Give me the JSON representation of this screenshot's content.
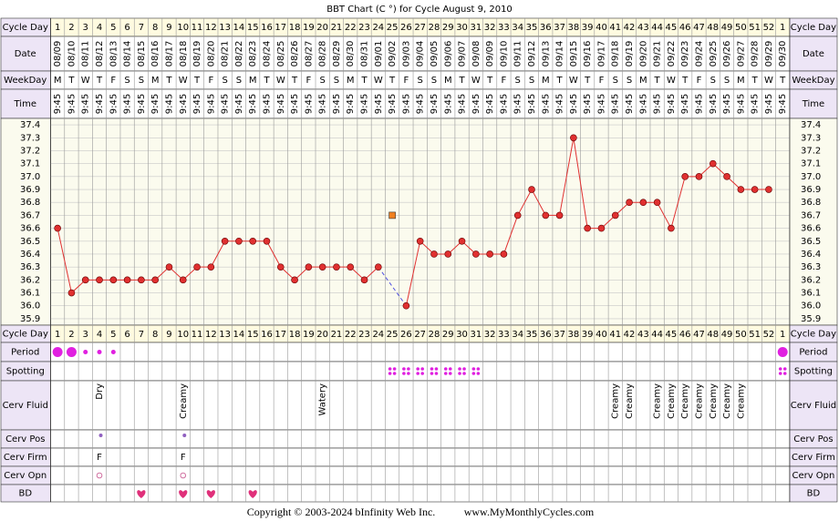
{
  "header": {
    "title": "BBT Chart (C °) for Cycle August 9, 2010",
    "copyright": "Copyright © 2003-2024 bInfinity Web Inc.",
    "site": "www.MyMonthlyCycles.com"
  },
  "labels": {
    "cycle_day": "Cycle Day",
    "date": "Date",
    "weekday": "WeekDay",
    "time": "Time",
    "period": "Period",
    "spotting": "Spotting",
    "cerv_fluid": "Cerv Fluid",
    "cerv_pos": "Cerv Pos",
    "cerv_firm": "Cerv Firm",
    "cerv_opn": "Cerv Opn",
    "bd": "BD"
  },
  "chart_data": {
    "type": "line",
    "color": "#e03030",
    "discarded_color": "#f08020",
    "grid": true,
    "categories": [
      1,
      2,
      3,
      4,
      5,
      6,
      7,
      8,
      9,
      10,
      11,
      12,
      13,
      14,
      15,
      16,
      17,
      18,
      19,
      20,
      21,
      22,
      23,
      24,
      25,
      26,
      27,
      28,
      29,
      30,
      31,
      32,
      33,
      34,
      35,
      36,
      37,
      38,
      39,
      40,
      41,
      42,
      43,
      44,
      45,
      46,
      47,
      48,
      49,
      50,
      51,
      52,
      1
    ],
    "values": [
      36.6,
      36.1,
      36.2,
      36.2,
      36.2,
      36.2,
      36.2,
      36.2,
      36.3,
      36.2,
      36.3,
      36.3,
      36.5,
      36.5,
      36.5,
      36.5,
      36.3,
      36.2,
      36.3,
      36.3,
      36.3,
      36.3,
      36.2,
      36.3,
      null,
      36.0,
      36.5,
      36.4,
      36.4,
      36.5,
      36.4,
      36.4,
      36.4,
      36.7,
      36.9,
      36.7,
      36.7,
      37.3,
      36.6,
      36.6,
      36.7,
      36.8,
      36.8,
      36.8,
      36.6,
      37.0,
      37.0,
      37.1,
      37.0,
      36.9,
      36.9,
      36.9,
      null
    ],
    "discarded_values": [
      null,
      null,
      null,
      null,
      null,
      null,
      null,
      null,
      null,
      null,
      null,
      null,
      null,
      null,
      null,
      null,
      null,
      null,
      null,
      null,
      null,
      null,
      null,
      null,
      36.7,
      null,
      null,
      null,
      null,
      null,
      null,
      null,
      null,
      null,
      null,
      null,
      null,
      null,
      null,
      null,
      null,
      null,
      null,
      null,
      null,
      null,
      null,
      null,
      null,
      null,
      null,
      null,
      null
    ],
    "ylim": [
      35.85,
      37.45
    ],
    "yticks": [
      35.9,
      {
        "value": 36,
        "label": "36.0"
      },
      36.1,
      36.2,
      36.3,
      36.4,
      36.5,
      36.6,
      36.7,
      36.8,
      36.9,
      {
        "value": 37,
        "label": "37.0"
      },
      37.1,
      37.2,
      37.3,
      37.4
    ]
  },
  "rows": {
    "date": [
      "08/09",
      "08/10",
      "08/11",
      "08/12",
      "08/13",
      "08/14",
      "08/15",
      "08/16",
      "08/17",
      "08/18",
      "08/19",
      "08/20",
      "08/21",
      "08/22",
      "08/23",
      "08/24",
      "08/25",
      "08/26",
      "08/27",
      "08/28",
      "08/29",
      "08/30",
      "08/31",
      "09/01",
      "09/02",
      "09/03",
      "09/04",
      "09/05",
      "09/06",
      "09/07",
      "09/08",
      "09/09",
      "09/10",
      "09/11",
      "09/12",
      "09/13",
      "09/14",
      "09/15",
      "09/16",
      "09/17",
      "09/18",
      "09/19",
      "09/20",
      "09/21",
      "09/22",
      "09/23",
      "09/24",
      "09/25",
      "09/26",
      "09/27",
      "09/28",
      "09/29",
      "09/30"
    ],
    "weekday": [
      "M",
      "T",
      "W",
      "T",
      "F",
      "S",
      "S",
      "M",
      "T",
      "W",
      "T",
      "F",
      "S",
      "S",
      "M",
      "T",
      "W",
      "T",
      "F",
      "S",
      "S",
      "M",
      "T",
      "W",
      "T",
      "F",
      "S",
      "S",
      "M",
      "T",
      "W",
      "T",
      "F",
      "S",
      "S",
      "M",
      "T",
      "W",
      "T",
      "F",
      "S",
      "S",
      "M",
      "T",
      "W",
      "T",
      "F",
      "S",
      "S",
      "M",
      "T",
      "W",
      "T"
    ],
    "time": [
      "9:45",
      "9:45",
      "9:45",
      "9:45",
      "9:45",
      "9:45",
      "9:45",
      "9:45",
      "9:45",
      "9:45",
      "9:45",
      "9:45",
      "9:45",
      "9:45",
      "9:45",
      "9:45",
      "9:45",
      "9:45",
      "9:45",
      "9:45",
      "9:45",
      "9:45",
      "9:45",
      "9:45",
      "9:45",
      "9:45",
      "9:45",
      "9:45",
      "9:45",
      "9:45",
      "9:45",
      "9:45",
      "9:45",
      "9:45",
      "9:45",
      "9:45",
      "9:45",
      "9:45",
      "9:45",
      "9:45",
      "9:45",
      "9:45",
      "9:45",
      "9:45",
      "9:45",
      "9:45",
      "9:45",
      "9:45",
      "9:45",
      "9:45",
      "9:45",
      "9:45",
      "9:45"
    ],
    "period": [
      2,
      2,
      1,
      1,
      1,
      null,
      null,
      null,
      null,
      null,
      null,
      null,
      null,
      null,
      null,
      null,
      null,
      null,
      null,
      null,
      null,
      null,
      null,
      null,
      null,
      null,
      null,
      null,
      null,
      null,
      null,
      null,
      null,
      null,
      null,
      null,
      null,
      null,
      null,
      null,
      null,
      null,
      null,
      null,
      null,
      null,
      null,
      null,
      null,
      null,
      null,
      null,
      2
    ],
    "spotting": [
      null,
      null,
      null,
      null,
      null,
      null,
      null,
      null,
      null,
      null,
      null,
      null,
      null,
      null,
      null,
      null,
      null,
      null,
      null,
      null,
      null,
      null,
      null,
      null,
      1,
      1,
      1,
      1,
      1,
      1,
      1,
      null,
      null,
      null,
      null,
      null,
      null,
      null,
      null,
      null,
      null,
      null,
      null,
      null,
      null,
      null,
      null,
      null,
      null,
      null,
      null,
      null,
      1
    ],
    "cerv_fluid": [
      null,
      null,
      null,
      "Dry",
      null,
      null,
      null,
      null,
      null,
      "Creamy",
      null,
      null,
      null,
      null,
      null,
      null,
      null,
      null,
      null,
      "Watery",
      null,
      null,
      null,
      null,
      null,
      null,
      null,
      null,
      null,
      null,
      null,
      null,
      null,
      null,
      null,
      null,
      null,
      null,
      null,
      null,
      "Creamy",
      "Creamy",
      null,
      "Creamy",
      "Creamy",
      "Creamy",
      "Creamy",
      "Creamy",
      "Creamy",
      "Creamy",
      null,
      null,
      null
    ],
    "cerv_pos": [
      null,
      null,
      null,
      1,
      null,
      null,
      null,
      null,
      null,
      1,
      null,
      null,
      null,
      null,
      null,
      null,
      null,
      null,
      null,
      null,
      null,
      null,
      null,
      null,
      null,
      null,
      null,
      null,
      null,
      null,
      null,
      null,
      null,
      null,
      null,
      null,
      null,
      null,
      null,
      null,
      null,
      null,
      null,
      null,
      null,
      null,
      null,
      null,
      null,
      null,
      null,
      null,
      null
    ],
    "cerv_firm": [
      null,
      null,
      null,
      "F",
      null,
      null,
      null,
      null,
      null,
      "F",
      null,
      null,
      null,
      null,
      null,
      null,
      null,
      null,
      null,
      null,
      null,
      null,
      null,
      null,
      null,
      null,
      null,
      null,
      null,
      null,
      null,
      null,
      null,
      null,
      null,
      null,
      null,
      null,
      null,
      null,
      null,
      null,
      null,
      null,
      null,
      null,
      null,
      null,
      null,
      null,
      null,
      null,
      null
    ],
    "cerv_opn": [
      null,
      null,
      null,
      1,
      null,
      null,
      null,
      null,
      null,
      1,
      null,
      null,
      null,
      null,
      null,
      null,
      null,
      null,
      null,
      null,
      null,
      null,
      null,
      null,
      null,
      null,
      null,
      null,
      null,
      null,
      null,
      null,
      null,
      null,
      null,
      null,
      null,
      null,
      null,
      null,
      null,
      null,
      null,
      null,
      null,
      null,
      null,
      null,
      null,
      null,
      null,
      null,
      null
    ],
    "bd": [
      null,
      null,
      null,
      null,
      null,
      null,
      1,
      null,
      null,
      1,
      null,
      1,
      null,
      null,
      1,
      null,
      null,
      null,
      null,
      null,
      null,
      null,
      null,
      null,
      null,
      null,
      null,
      null,
      null,
      null,
      null,
      null,
      null,
      null,
      null,
      null,
      null,
      null,
      null,
      null,
      null,
      null,
      null,
      null,
      null,
      null,
      null,
      null,
      null,
      null,
      null,
      null,
      null
    ]
  }
}
